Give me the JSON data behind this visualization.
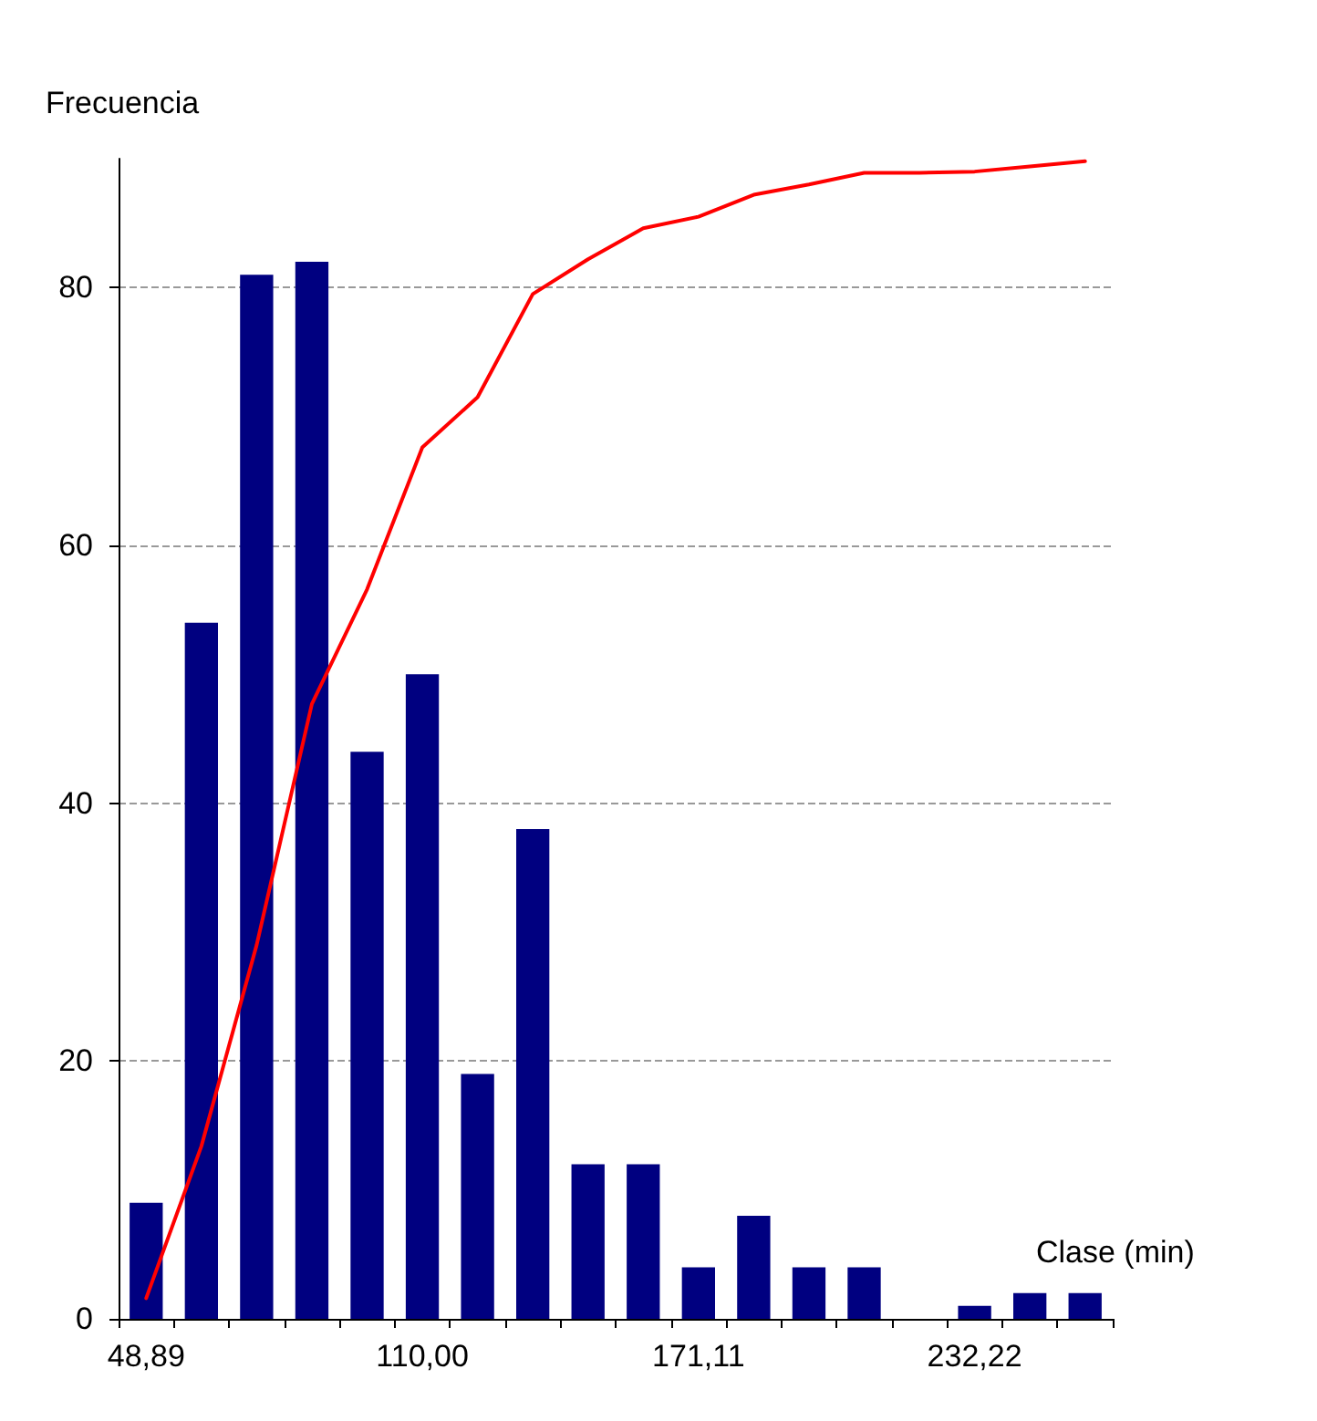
{
  "chart_data": {
    "type": "bar",
    "xlabel": "Clase (min)",
    "ylabel": "Frecuencia",
    "categories": [
      "48,89",
      null,
      null,
      null,
      null,
      "110,00",
      null,
      null,
      null,
      null,
      "171,11",
      null,
      null,
      null,
      null,
      "232,22",
      null,
      null
    ],
    "series": [
      {
        "color": "#000080",
        "values": [
          9,
          54,
          81,
          82,
          44,
          50,
          19,
          38,
          12,
          12,
          4,
          8,
          4,
          4,
          0,
          1,
          2,
          2
        ]
      },
      {
        "type": "line",
        "color": "#ff0000",
        "marker": "none",
        "line_style": "solid",
        "values": [
          1.6,
          13.4,
          29,
          47.7,
          56.6,
          67.6,
          71.5,
          79.5,
          82.2,
          84.6,
          85.5,
          87.2,
          88,
          88.9,
          88.9,
          89,
          89.4,
          89.8
        ]
      }
    ],
    "ylim": [
      0,
      90
    ],
    "yticks": [
      0,
      20,
      40,
      60,
      80
    ],
    "grid": "y"
  }
}
